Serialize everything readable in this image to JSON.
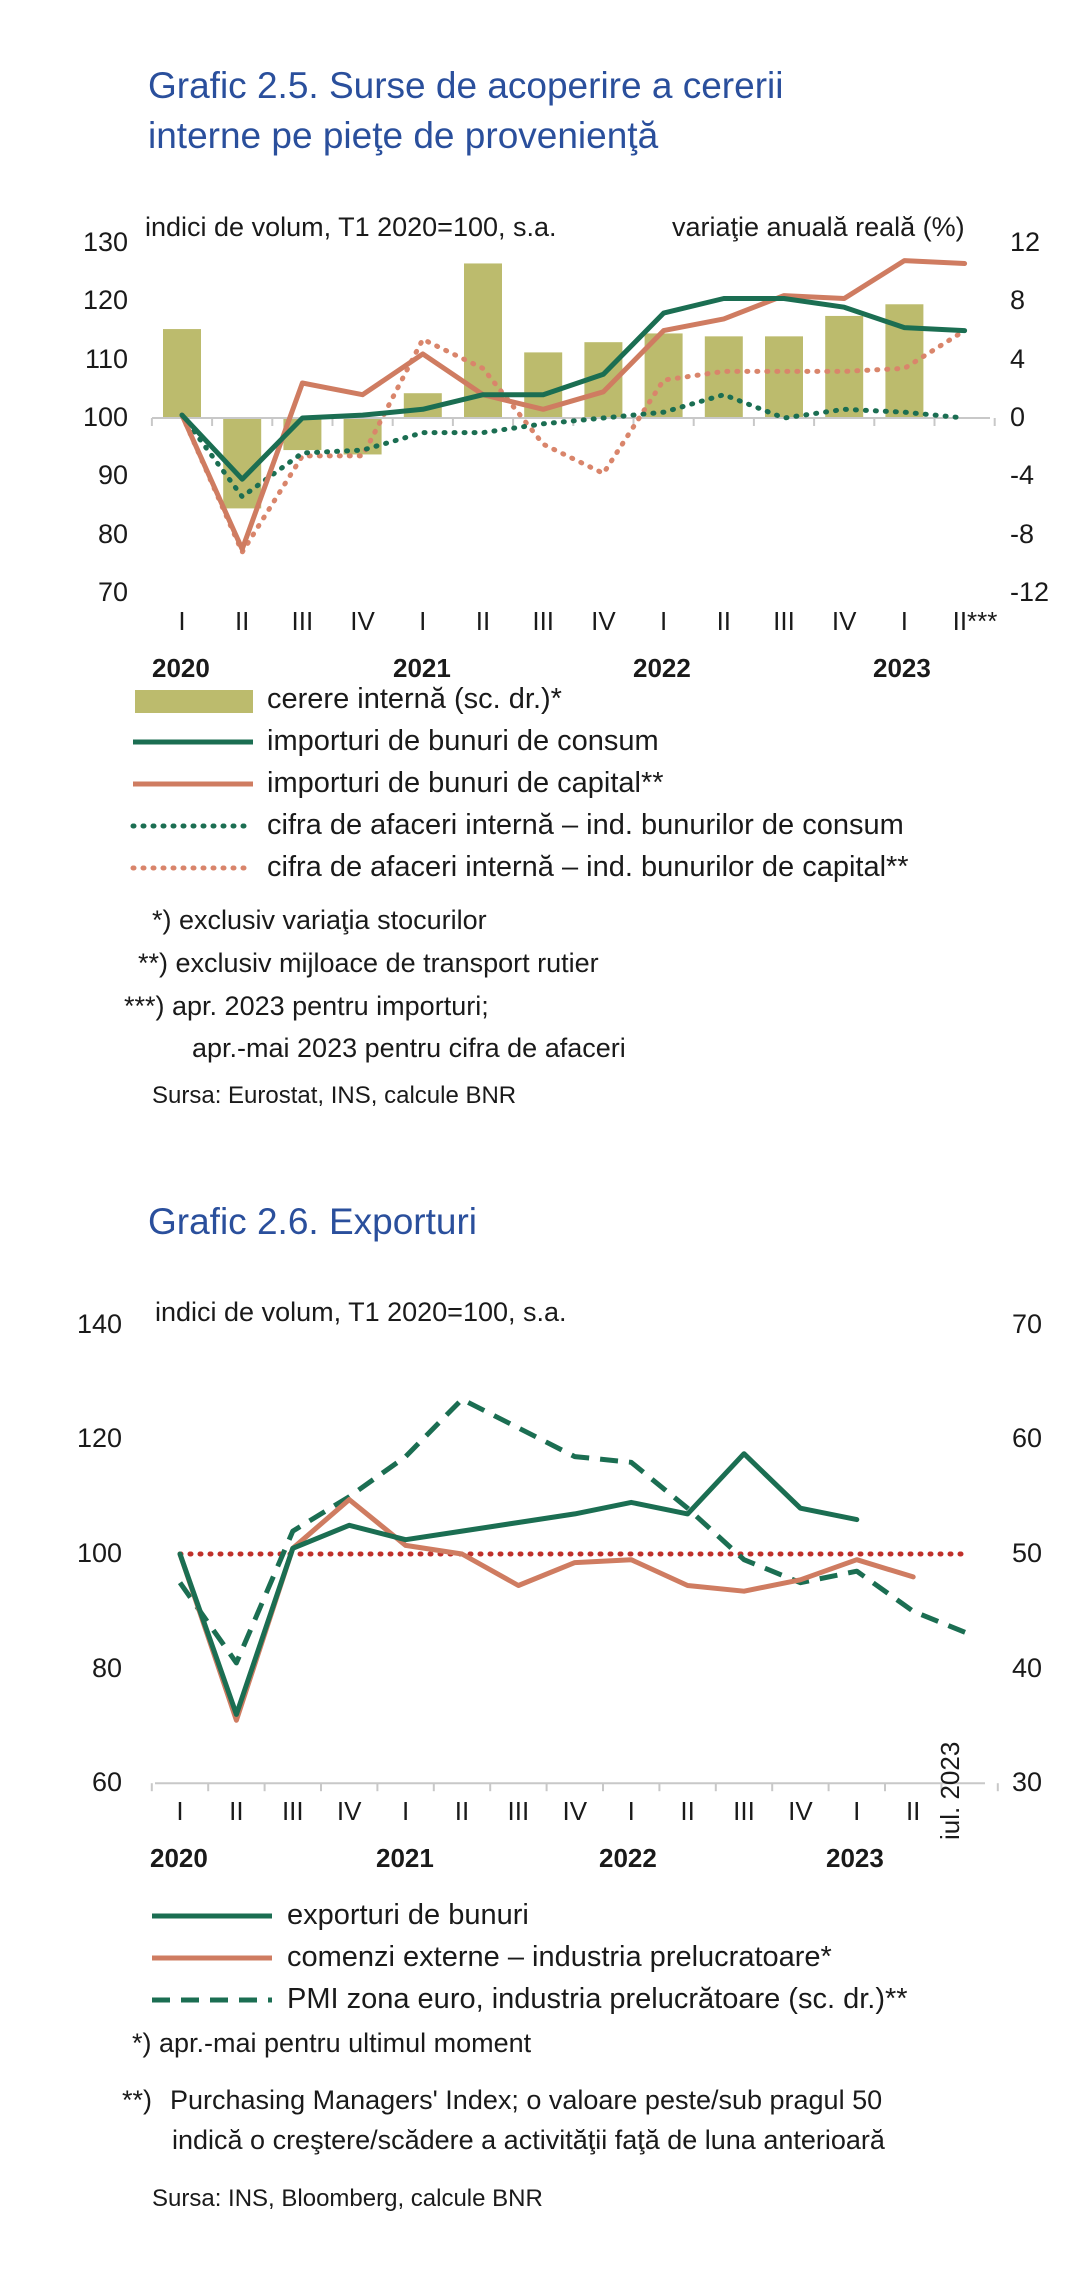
{
  "chart1": {
    "title_line1": "Grafic 2.5. Surse de acoperire  a cererii",
    "title_line2": "interne pe pieţe de provenienţă",
    "left_axis_label": "indici de volum, T1 2020=100, s.a.",
    "right_axis_label": "variaţie anuală reală (%)",
    "left_ticks": [
      "130",
      "120",
      "110",
      "100",
      "90",
      "80",
      "70"
    ],
    "right_ticks": [
      "12",
      "8",
      "4",
      "0",
      "-4",
      "-8",
      "-12"
    ],
    "quarters": [
      "I",
      "II",
      "III",
      "IV",
      "I",
      "II",
      "III",
      "IV",
      "I",
      "II",
      "III",
      "IV",
      "I",
      "II***"
    ],
    "years": [
      "2020",
      "2021",
      "2022",
      "2023"
    ],
    "legend": [
      "cerere internă (sc. dr.)*",
      "importuri de bunuri de consum",
      "importuri de bunuri de capital**",
      "cifra de afaceri internă – ind. bunurilor de consum",
      "cifra de afaceri internă – ind. bunurilor de capital**"
    ],
    "notes": [
      "*) exclusiv variaţia stocurilor",
      "**) exclusiv mijloace de transport rutier",
      "***) apr. 2023 pentru importuri;",
      "apr.-mai 2023 pentru cifra de afaceri"
    ],
    "source": "Sursa: Eurostat, INS, calcule BNR",
    "colors": {
      "bars": "#bcbb6d",
      "consumer_imports": "#1b6e52",
      "capital_imports": "#cf7c61",
      "consumer_turnover": "#1b6e52",
      "capital_turnover": "#d9856b"
    }
  },
  "chart2": {
    "title": "Grafic 2.6. Exporturi",
    "left_axis_label": "indici de volum, T1 2020=100, s.a.",
    "left_ticks": [
      "140",
      "120",
      "100",
      "80",
      "60"
    ],
    "right_ticks": [
      "70",
      "60",
      "50",
      "40",
      "30"
    ],
    "quarters": [
      "I",
      "II",
      "III",
      "IV",
      "I",
      "II",
      "III",
      "IV",
      "I",
      "II",
      "III",
      "IV",
      "I",
      "II"
    ],
    "years": [
      "2020",
      "2021",
      "2022",
      "2023"
    ],
    "extra_label": "iul. 2023",
    "legend": [
      "exporturi de bunuri",
      "comenzi externe – industria prelucratoare*",
      "PMI zona euro, industria prelucrătoare (sc. dr.)**"
    ],
    "notes": [
      "*) apr.-mai pentru ultimul moment",
      "**)",
      "Purchasing Managers' Index; o valoare peste/sub pragul 50",
      "indică o creştere/scădere a activităţii faţă de luna anterioară"
    ],
    "source": "Sursa: INS, Bloomberg, calcule BNR",
    "colors": {
      "exports": "#1b6e52",
      "orders": "#cf7c61",
      "pmi": "#1b6e52",
      "ref": "#c0302a"
    }
  },
  "chart_data": [
    {
      "type": "bar+line",
      "title": "Grafic 2.5. Surse de acoperire  a cererii interne pe pieţe de provenienţă",
      "categories": [
        "I 2020",
        "II 2020",
        "III 2020",
        "IV 2020",
        "I 2021",
        "II 2021",
        "III 2021",
        "IV 2021",
        "I 2022",
        "II 2022",
        "III 2022",
        "IV 2022",
        "I 2023",
        "II 2023"
      ],
      "ylim_left": [
        70,
        130
      ],
      "ylim_right": [
        -12,
        12
      ],
      "grid": false,
      "series": [
        {
          "name": "cerere internă (sc. dr.)*",
          "axis": "right",
          "kind": "bar",
          "values": [
            6.1,
            -6.2,
            -2.2,
            -2.5,
            1.7,
            10.6,
            4.5,
            5.2,
            5.8,
            5.6,
            5.6,
            7.0,
            7.8,
            null
          ]
        },
        {
          "name": "importuri de bunuri de consum",
          "axis": "left",
          "kind": "line",
          "values": [
            100.5,
            89.5,
            100,
            100.5,
            101.5,
            104,
            104,
            107.5,
            118,
            120.5,
            120.5,
            119,
            115.5,
            115
          ]
        },
        {
          "name": "importuri de bunuri de capital**",
          "axis": "left",
          "kind": "line",
          "values": [
            100.5,
            77.5,
            106,
            104,
            111,
            104,
            101.5,
            104.5,
            115,
            117,
            121,
            120.5,
            127,
            126.5
          ]
        },
        {
          "name": "cifra de afaceri internă – ind. bunurilor de consum",
          "axis": "left",
          "kind": "dotted",
          "values": [
            100.5,
            86.5,
            94,
            94.5,
            97.5,
            97.5,
            99,
            100,
            101,
            104,
            100,
            101.5,
            101,
            100
          ]
        },
        {
          "name": "cifra de afaceri internă – ind. bunurilor de capital**",
          "axis": "left",
          "kind": "dotted",
          "values": [
            100.5,
            77,
            93.5,
            93.5,
            113.5,
            108.5,
            95.5,
            90.5,
            106.5,
            108,
            108,
            108,
            108.5,
            115
          ]
        }
      ]
    },
    {
      "type": "line",
      "title": "Grafic 2.6. Exporturi",
      "categories": [
        "I 2020",
        "II 2020",
        "III 2020",
        "IV 2020",
        "I 2021",
        "II 2021",
        "III 2021",
        "IV 2021",
        "I 2022",
        "II 2022",
        "III 2022",
        "IV 2022",
        "I 2023",
        "II 2023",
        "iul. 2023"
      ],
      "ylim_left": [
        60,
        140
      ],
      "ylim_right": [
        30,
        70
      ],
      "grid": false,
      "series": [
        {
          "name": "exporturi de bunuri",
          "axis": "left",
          "kind": "line",
          "values": [
            100,
            72,
            101,
            105,
            102.5,
            104,
            105.5,
            107,
            109,
            107,
            117.5,
            108,
            106,
            null,
            null
          ]
        },
        {
          "name": "comenzi externe – industria prelucratoare*",
          "axis": "left",
          "kind": "line",
          "values": [
            100,
            71,
            101,
            109.5,
            101.5,
            100,
            94.5,
            98.5,
            99,
            94.5,
            93.5,
            95.5,
            99,
            96,
            null
          ]
        },
        {
          "name": "PMI zona euro, industria prelucrătoare (sc. dr.)**",
          "axis": "right",
          "kind": "dashed",
          "values": [
            47.5,
            40.5,
            52,
            55,
            58.5,
            63.5,
            61,
            58.5,
            58,
            54,
            49.5,
            47.5,
            48.5,
            45,
            43
          ]
        },
        {
          "axis": "right",
          "kind": "dotted",
          "values": [
            50,
            50,
            50,
            50,
            50,
            50,
            50,
            50,
            50,
            50,
            50,
            50,
            50,
            50,
            50
          ]
        }
      ]
    }
  ]
}
